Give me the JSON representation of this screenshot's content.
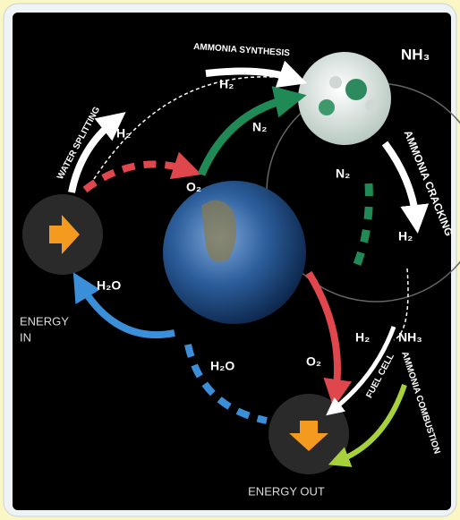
{
  "diagram": {
    "processes": {
      "water_splitting": "WATER SPLITTING",
      "ammonia_synthesis": "AMMONIA SYNTHESIS",
      "ammonia_cracking": "AMMONIA CRACKING",
      "fuel_cell": "FUEL CELL",
      "ammonia_combustion": "AMMONIA COMBUSTION"
    },
    "nodes": {
      "energy_in": [
        "ENERGY",
        "IN"
      ],
      "energy_out": "ENERGY OUT",
      "ammonia": "NH₃"
    },
    "species": [
      "H₂",
      "H₂",
      "N₂",
      "O₂",
      "N₂",
      "H₂",
      "H₂O",
      "H₂O",
      "O₂",
      "H₂",
      "NH₃"
    ]
  }
}
